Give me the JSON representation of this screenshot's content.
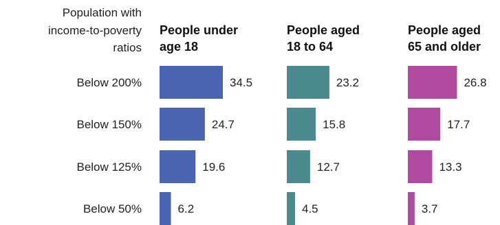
{
  "chart_data": {
    "type": "bar",
    "orientation": "horizontal",
    "row_header": [
      "Population with",
      "income-to-poverty",
      "ratios"
    ],
    "categories": [
      "Below 200%",
      "Below 150%",
      "Below 125%",
      "Below 50%"
    ],
    "series": [
      {
        "name": "People under age 18",
        "title_lines": [
          "People under",
          "age 18"
        ],
        "color": "#4a66b3",
        "values": [
          34.5,
          24.7,
          19.6,
          6.2
        ]
      },
      {
        "name": "People aged 18 to 64",
        "title_lines": [
          "People aged",
          "18 to 64"
        ],
        "color": "#4a8a8e",
        "values": [
          23.2,
          15.8,
          12.7,
          4.5
        ]
      },
      {
        "name": "People aged 65 and older",
        "title_lines": [
          "People aged",
          "65 and older"
        ],
        "color": "#b04a9e",
        "values": [
          26.8,
          17.7,
          13.3,
          3.7
        ]
      }
    ],
    "grid": false,
    "legend": "none"
  }
}
